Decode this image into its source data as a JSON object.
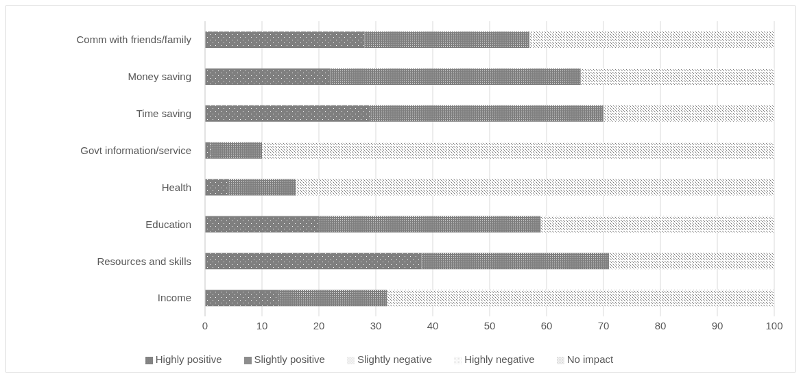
{
  "chart_data": {
    "type": "bar",
    "orientation": "horizontal",
    "stacked": true,
    "categories": [
      "Comm with friends/family",
      "Money saving",
      "Time saving",
      "Govt information/service",
      "Health",
      "Education",
      "Resources and skills",
      "Income"
    ],
    "series": [
      {
        "name": "Highly positive",
        "color": "#7f7f7f",
        "values": [
          28,
          22,
          29,
          1,
          4,
          20,
          38,
          13
        ]
      },
      {
        "name": "Slightly positive",
        "color": "#7f7f7f",
        "values": [
          29,
          44,
          41,
          9,
          12,
          39,
          33,
          19
        ]
      },
      {
        "name": "Slightly negative",
        "color": "#7f7f7f",
        "values": [
          0,
          0,
          0,
          0,
          0,
          0,
          0,
          0
        ]
      },
      {
        "name": "Highly negative",
        "color": "#7f7f7f",
        "values": [
          0,
          0,
          0,
          0,
          0,
          0,
          0,
          0
        ]
      },
      {
        "name": "No impact",
        "color": "#7f7f7f",
        "values": [
          43,
          34,
          30,
          90,
          84,
          41,
          29,
          68
        ]
      }
    ],
    "xlim": [
      0,
      100
    ],
    "xticks": [
      0,
      10,
      20,
      30,
      40,
      50,
      60,
      70,
      80,
      90,
      100
    ],
    "grid": "x",
    "legend": "bottom"
  }
}
